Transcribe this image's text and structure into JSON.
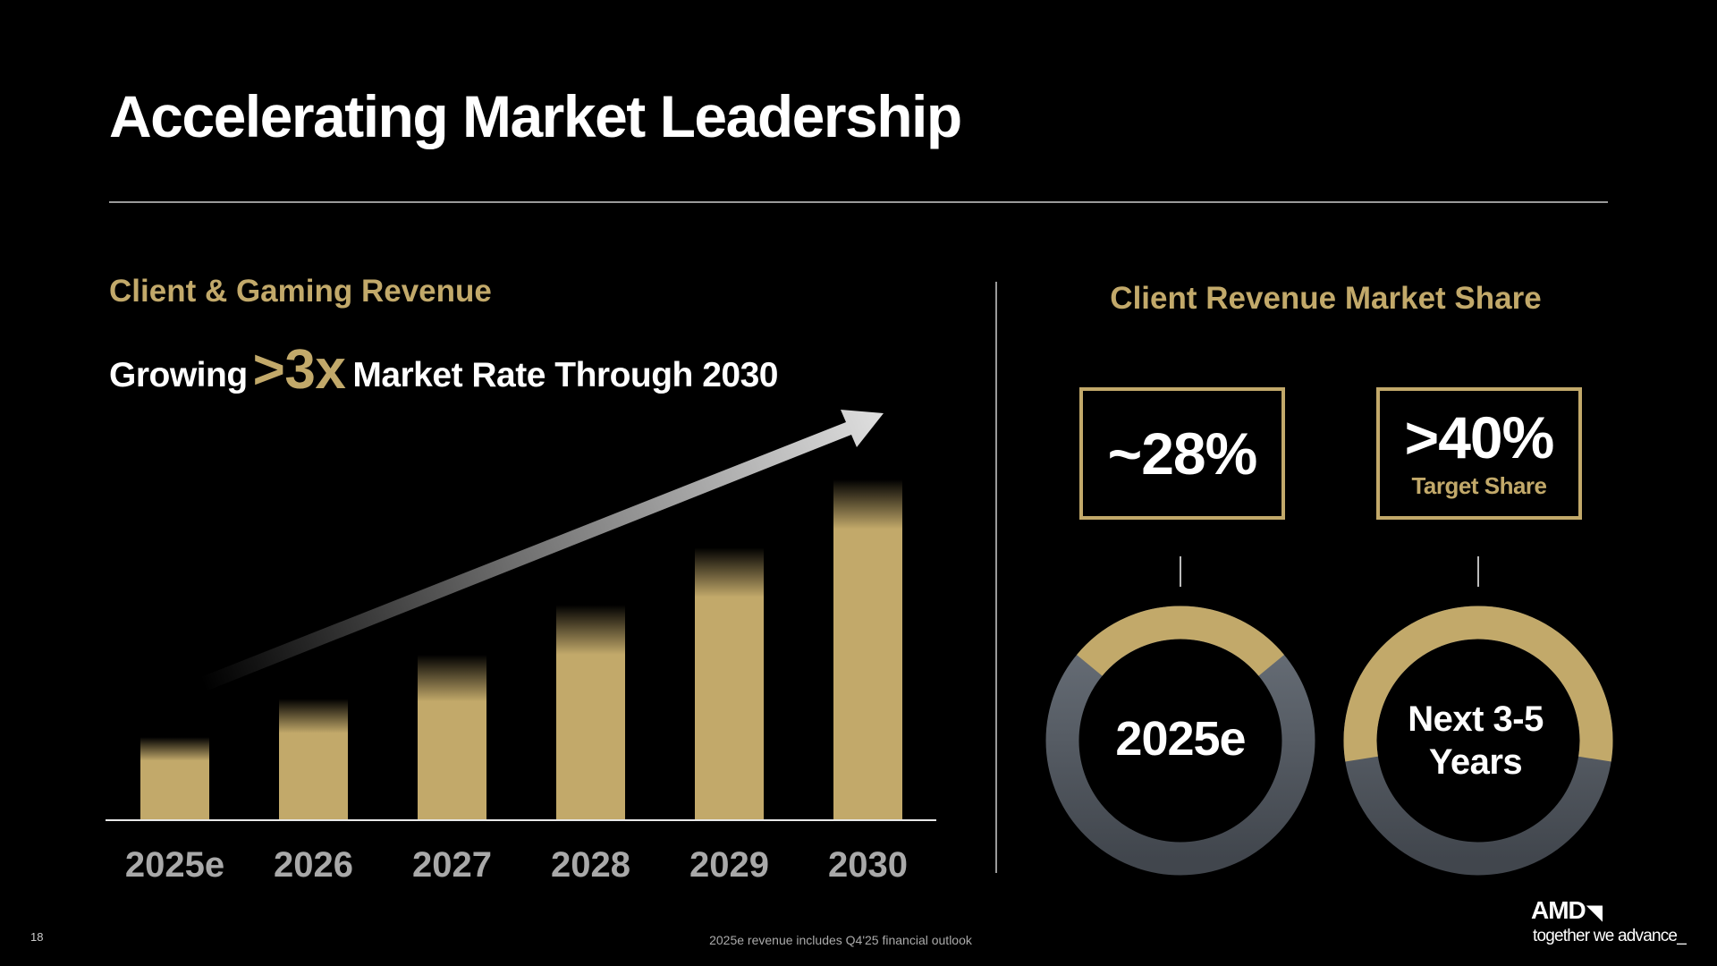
{
  "title": "Accelerating Market Leadership",
  "left_panel": {
    "heading": "Client & Gaming Revenue",
    "subtitle_pre": "Growing",
    "subtitle_big": ">3x",
    "subtitle_post": "Market Rate Through 2030"
  },
  "chart_data": {
    "type": "bar",
    "categories": [
      "2025e",
      "2026",
      "2027",
      "2028",
      "2029",
      "2030"
    ],
    "values": [
      1.0,
      1.46,
      1.99,
      2.59,
      3.28,
      4.1
    ],
    "ylim": [
      0,
      4.1
    ],
    "xlabel": "",
    "ylabel": "",
    "grid": false,
    "bar_color": "#C2A96A",
    "annotation": "upward-trend-arrow"
  },
  "right_panel": {
    "heading": "Client Revenue Market Share",
    "cards": [
      {
        "value": "~28%",
        "sub": "",
        "donut_label_lines": [
          "2025e"
        ],
        "share_fill": 0.28
      },
      {
        "value": ">40%",
        "sub": "Target Share",
        "donut_label_lines": [
          "Next 3-5",
          "Years"
        ],
        "share_fill": 0.55
      }
    ],
    "colors": {
      "gold": "#C2A96A",
      "ring": "#5B6169"
    }
  },
  "footer": {
    "page_number": "18",
    "note": "2025e revenue includes Q4'25 financial outlook",
    "logo": "AMD",
    "tagline": "together we advance_"
  }
}
